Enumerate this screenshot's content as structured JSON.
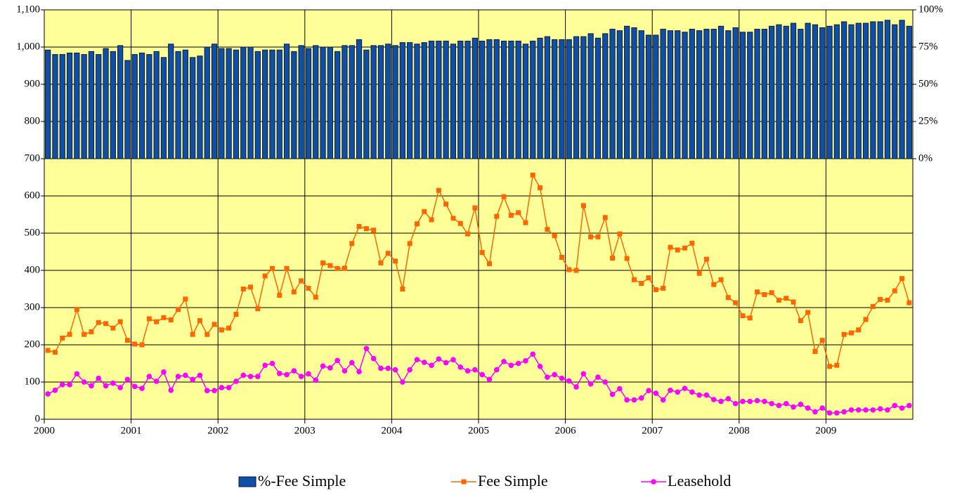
{
  "chart_data": {
    "type": "combo",
    "categories": [
      "2000",
      null,
      null,
      null,
      null,
      null,
      null,
      null,
      null,
      null,
      null,
      null,
      "2001",
      null,
      null,
      null,
      null,
      null,
      null,
      null,
      null,
      null,
      null,
      null,
      "2002",
      null,
      null,
      null,
      null,
      null,
      null,
      null,
      null,
      null,
      null,
      null,
      "2003",
      null,
      null,
      null,
      null,
      null,
      null,
      null,
      null,
      null,
      null,
      null,
      "2004",
      null,
      null,
      null,
      null,
      null,
      null,
      null,
      null,
      null,
      null,
      null,
      "2005",
      null,
      null,
      null,
      null,
      null,
      null,
      null,
      null,
      null,
      null,
      null,
      "2006",
      null,
      null,
      null,
      null,
      null,
      null,
      null,
      null,
      null,
      null,
      null,
      "2007",
      null,
      null,
      null,
      null,
      null,
      null,
      null,
      null,
      null,
      null,
      null,
      "2008",
      null,
      null,
      null,
      null,
      null,
      null,
      null,
      null,
      null,
      null,
      null,
      "2009",
      null,
      null,
      null,
      null,
      null,
      null,
      null,
      null,
      null,
      null,
      null
    ],
    "ylim": [
      0,
      1100
    ],
    "yticks": [
      0,
      100,
      200,
      300,
      400,
      500,
      600,
      700,
      800,
      900,
      {
        "value": 1000,
        "label": "1,000"
      },
      {
        "value": 1100,
        "label": "1,100"
      }
    ],
    "y2lim": [
      -175,
      100
    ],
    "y2ticks": [
      {
        "value": 0,
        "label": "0%"
      },
      {
        "value": 25,
        "label": "25%"
      },
      {
        "value": 50,
        "label": "50%"
      },
      {
        "value": 75,
        "label": "75%"
      },
      {
        "value": 100,
        "label": "100%"
      }
    ],
    "grid": true,
    "background": "#ffff99",
    "legend": "bottom",
    "series": [
      {
        "name": "%-Fee Simple",
        "type": "bar",
        "axis": "y2",
        "color": "#0f4fa8",
        "values": [
          73,
          70,
          70,
          71,
          71,
          70,
          72,
          70,
          74,
          72,
          76,
          66,
          70,
          71,
          70,
          72,
          68,
          77,
          72,
          73,
          68,
          69,
          75,
          77,
          74,
          74,
          73,
          75,
          75,
          72,
          73,
          73,
          73,
          77,
          72,
          76,
          74,
          76,
          75,
          75,
          72,
          76,
          76,
          80,
          73,
          76,
          76,
          77,
          76,
          78,
          78,
          77,
          78,
          79,
          79,
          79,
          77,
          79,
          79,
          81,
          79,
          80,
          80,
          79,
          79,
          79,
          77,
          79,
          81,
          82,
          80,
          80,
          80,
          82,
          82,
          84,
          81,
          84,
          87,
          86,
          89,
          88,
          86,
          83,
          83,
          87,
          86,
          86,
          85,
          87,
          86,
          87,
          87,
          89,
          86,
          88,
          85,
          85,
          87,
          87,
          89,
          90,
          89,
          91,
          87,
          91,
          90,
          88,
          89,
          90,
          92,
          90,
          91,
          91,
          92,
          92,
          93,
          90,
          93,
          89
        ]
      },
      {
        "name": "Fee Simple",
        "type": "line",
        "marker": "square",
        "color": "#ff6600",
        "values": [
          185,
          180,
          218,
          228,
          295,
          228,
          235,
          260,
          257,
          245,
          262,
          212,
          202,
          200,
          270,
          262,
          273,
          267,
          295,
          323,
          228,
          265,
          228,
          255,
          240,
          245,
          282,
          350,
          355,
          297,
          385,
          405,
          333,
          405,
          342,
          372,
          352,
          328,
          420,
          413,
          405,
          406,
          472,
          518,
          512,
          508,
          420,
          446,
          425,
          350,
          472,
          525,
          558,
          536,
          615,
          578,
          540,
          526,
          498,
          568,
          448,
          418,
          545,
          598,
          548,
          555,
          528,
          656,
          622,
          510,
          493,
          435,
          402,
          400,
          574,
          490,
          490,
          542,
          433,
          498,
          432,
          375,
          365,
          380,
          348,
          352,
          462,
          455,
          460,
          473,
          392,
          430,
          362,
          375,
          327,
          313,
          278,
          272,
          342,
          335,
          340,
          320,
          325,
          315,
          265,
          287,
          182,
          212,
          142,
          145,
          228,
          232,
          240,
          268,
          303,
          322,
          320,
          345,
          378,
          313
        ]
      },
      {
        "name": "Leasehold",
        "type": "line",
        "marker": "circle",
        "color": "#ff00ff",
        "values": [
          68,
          78,
          93,
          93,
          122,
          100,
          90,
          110,
          90,
          97,
          85,
          107,
          88,
          83,
          115,
          102,
          127,
          78,
          115,
          118,
          107,
          118,
          77,
          77,
          85,
          85,
          102,
          118,
          115,
          115,
          145,
          150,
          123,
          120,
          130,
          115,
          122,
          105,
          143,
          138,
          158,
          130,
          152,
          128,
          190,
          163,
          137,
          137,
          133,
          100,
          133,
          160,
          153,
          145,
          162,
          152,
          160,
          140,
          130,
          133,
          120,
          107,
          133,
          155,
          145,
          150,
          157,
          175,
          142,
          113,
          120,
          110,
          103,
          87,
          122,
          95,
          113,
          100,
          67,
          82,
          52,
          52,
          57,
          77,
          70,
          52,
          78,
          73,
          83,
          73,
          65,
          65,
          53,
          48,
          55,
          42,
          48,
          48,
          50,
          48,
          42,
          37,
          42,
          33,
          40,
          30,
          20,
          30,
          17,
          17,
          20,
          25,
          25,
          25,
          25,
          28,
          25,
          37,
          30,
          37
        ]
      }
    ]
  }
}
